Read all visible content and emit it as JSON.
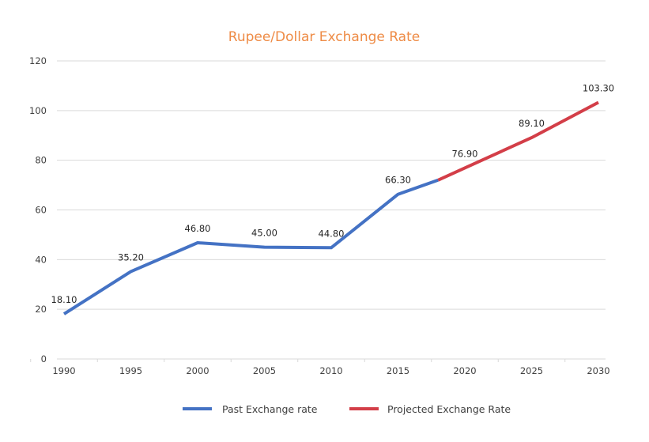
{
  "chart_data": {
    "type": "line",
    "title": "Rupee/Dollar Exchange Rate",
    "xlabel": "",
    "ylabel": "",
    "x_ticks": [
      "1990",
      "1995",
      "2000",
      "2005",
      "2010",
      "2015",
      "2020",
      "2025",
      "2030"
    ],
    "y_ticks": [
      "0",
      "20",
      "40",
      "60",
      "80",
      "100",
      "120"
    ],
    "ylim": [
      0,
      120
    ],
    "xlim": [
      1990,
      2030
    ],
    "grid": true,
    "legend_position": "bottom",
    "series": [
      {
        "name": "Past Exchange rate",
        "color": "#4472C4",
        "points": [
          {
            "x": 1990,
            "y": 18.1,
            "label": "18.10"
          },
          {
            "x": 1995,
            "y": 35.2,
            "label": "35.20"
          },
          {
            "x": 2000,
            "y": 46.8,
            "label": "46.80"
          },
          {
            "x": 2005,
            "y": 45.0,
            "label": "45.00"
          },
          {
            "x": 2010,
            "y": 44.8,
            "label": "44.80"
          },
          {
            "x": 2015,
            "y": 66.3,
            "label": "66.30"
          },
          {
            "x": 2018,
            "y": 72.0,
            "label": null
          }
        ]
      },
      {
        "name": "Projected Exchange Rate",
        "color": "#D33E48",
        "points": [
          {
            "x": 2018,
            "y": 72.0,
            "label": null
          },
          {
            "x": 2020,
            "y": 76.9,
            "label": "76.90"
          },
          {
            "x": 2025,
            "y": 89.1,
            "label": "89.10"
          },
          {
            "x": 2030,
            "y": 103.3,
            "label": "103.30"
          }
        ]
      }
    ],
    "colors": {
      "title": "#EE8B45",
      "grid": "#D9D9D9"
    }
  }
}
